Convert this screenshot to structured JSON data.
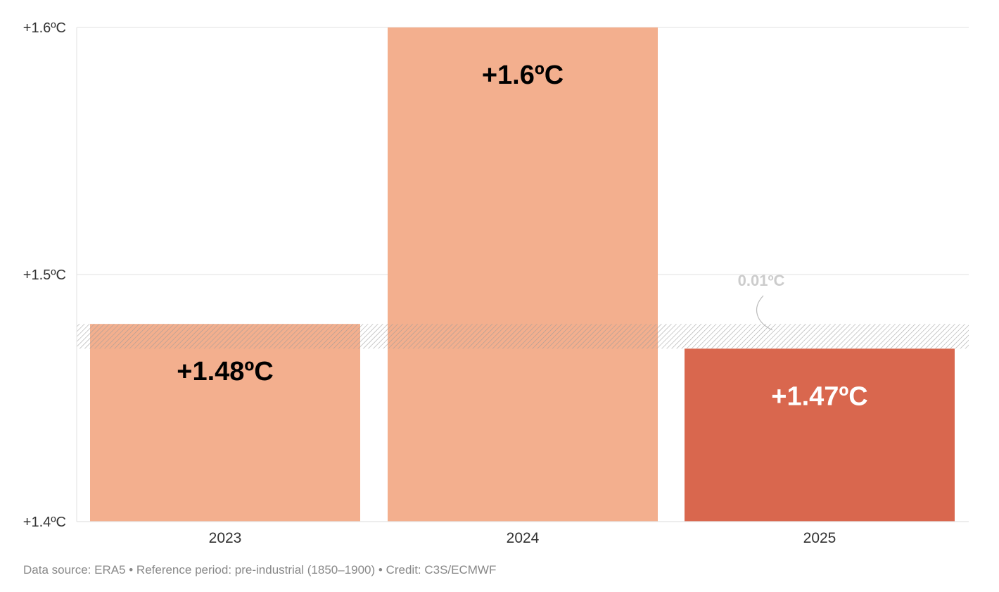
{
  "chart_data": {
    "type": "bar",
    "categories": [
      "2023",
      "2024",
      "2025"
    ],
    "values": [
      1.48,
      1.6,
      1.47
    ],
    "value_labels": [
      "+1.48ºC",
      "+1.6ºC",
      "+1.47ºC"
    ],
    "ylim": [
      1.4,
      1.6
    ],
    "yticks": [
      1.4,
      1.5,
      1.6
    ],
    "ytick_labels": [
      "+1.4ºC",
      "+1.5ºC",
      "+1.6ºC"
    ],
    "grid": true,
    "highlight_band": {
      "from": 1.47,
      "to": 1.48,
      "label": "0.01ºC"
    },
    "colors": {
      "bar_default": "#f3af8e",
      "bar_highlight": "#d9674e",
      "label_dark": "#000000",
      "label_light": "#ffffff",
      "grid": "#e6e6e6",
      "hatch": "#999999"
    },
    "highlight_index": 2
  },
  "footer": {
    "source": "Data source: ERA5 • Reference period: pre-industrial (1850–1900) • Credit: C3S/ECMWF"
  }
}
